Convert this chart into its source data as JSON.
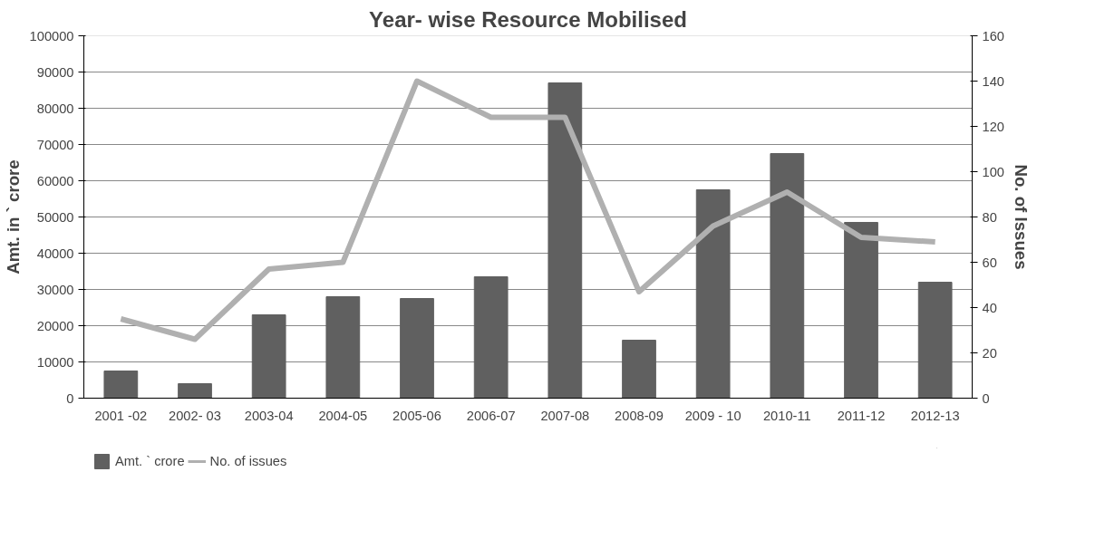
{
  "chart_data": {
    "type": "bar",
    "title": "Year- wise Resource Mobilised",
    "ylabel": "Amt. in ` crore",
    "y2label": "No. of Issues",
    "categories": [
      "2001 -02",
      "2002- 03",
      "2003-04",
      "2004-05",
      "2005-06",
      "2006-07",
      "2007-08",
      "2008-09",
      "2009 - 10",
      "2010-11",
      "2011-12",
      "2012-13"
    ],
    "series": [
      {
        "name": "Amt. ` crore",
        "color": "#606060",
        "values": [
          7500,
          4000,
          23000,
          28000,
          27500,
          33500,
          87000,
          16000,
          57500,
          67500,
          48500,
          32000
        ]
      },
      {
        "name": "No. of issues",
        "type": "line",
        "axis": "y2",
        "color": "#b0b0b0",
        "values": [
          35,
          26,
          57,
          60,
          140,
          124,
          124,
          47,
          76,
          91,
          71,
          69
        ]
      }
    ],
    "ylim": [
      0,
      100000
    ],
    "yticks": [
      0,
      10000,
      20000,
      30000,
      40000,
      50000,
      60000,
      70000,
      80000,
      90000,
      100000
    ],
    "y2lim": [
      0,
      160
    ],
    "y2ticks": [
      0,
      20,
      40,
      60,
      80,
      100,
      120,
      140,
      160
    ],
    "grid": "y",
    "legend": "bottom",
    "marker": "none",
    "line_style": "solid"
  }
}
